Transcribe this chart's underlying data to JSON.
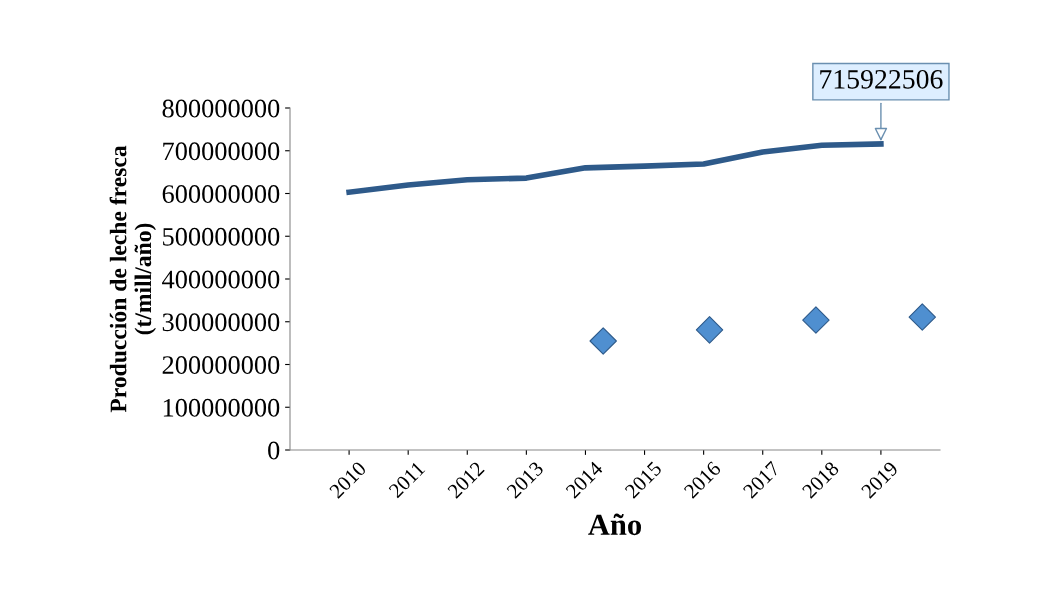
{
  "chart_data": {
    "type": "line",
    "xlabel": "Año",
    "ylabel": "Producción de leche fresca\n(t/mill/año)",
    "x": [
      2010,
      2011,
      2012,
      2013,
      2014,
      2015,
      2016,
      2017,
      2018,
      2019
    ],
    "series": [
      {
        "color": "#2e5a8a",
        "values": [
          603000000,
          620000000,
          632000000,
          636000000,
          660000000,
          664000000,
          669000000,
          697000000,
          713000000,
          715922506
        ]
      },
      {
        "type": "scatter",
        "color": "#4f8fd0",
        "marker": "diamond",
        "x": [
          2014.3,
          2016.1,
          2017.9,
          2019.7
        ],
        "values": [
          255000000,
          281000000,
          304000000,
          311000000
        ]
      }
    ],
    "xlim": [
      2009,
      2020
    ],
    "xticks": [
      2010,
      2011,
      2012,
      2013,
      2014,
      2015,
      2016,
      2017,
      2018,
      2019
    ],
    "ylim": [
      0,
      800000000
    ],
    "yticks": [
      0,
      100000000,
      200000000,
      300000000,
      400000000,
      500000000,
      600000000,
      700000000,
      800000000
    ],
    "annotations": [
      {
        "text": "715922506",
        "x": 2019,
        "y": 715922506
      }
    ],
    "grid": false,
    "legend": false
  }
}
